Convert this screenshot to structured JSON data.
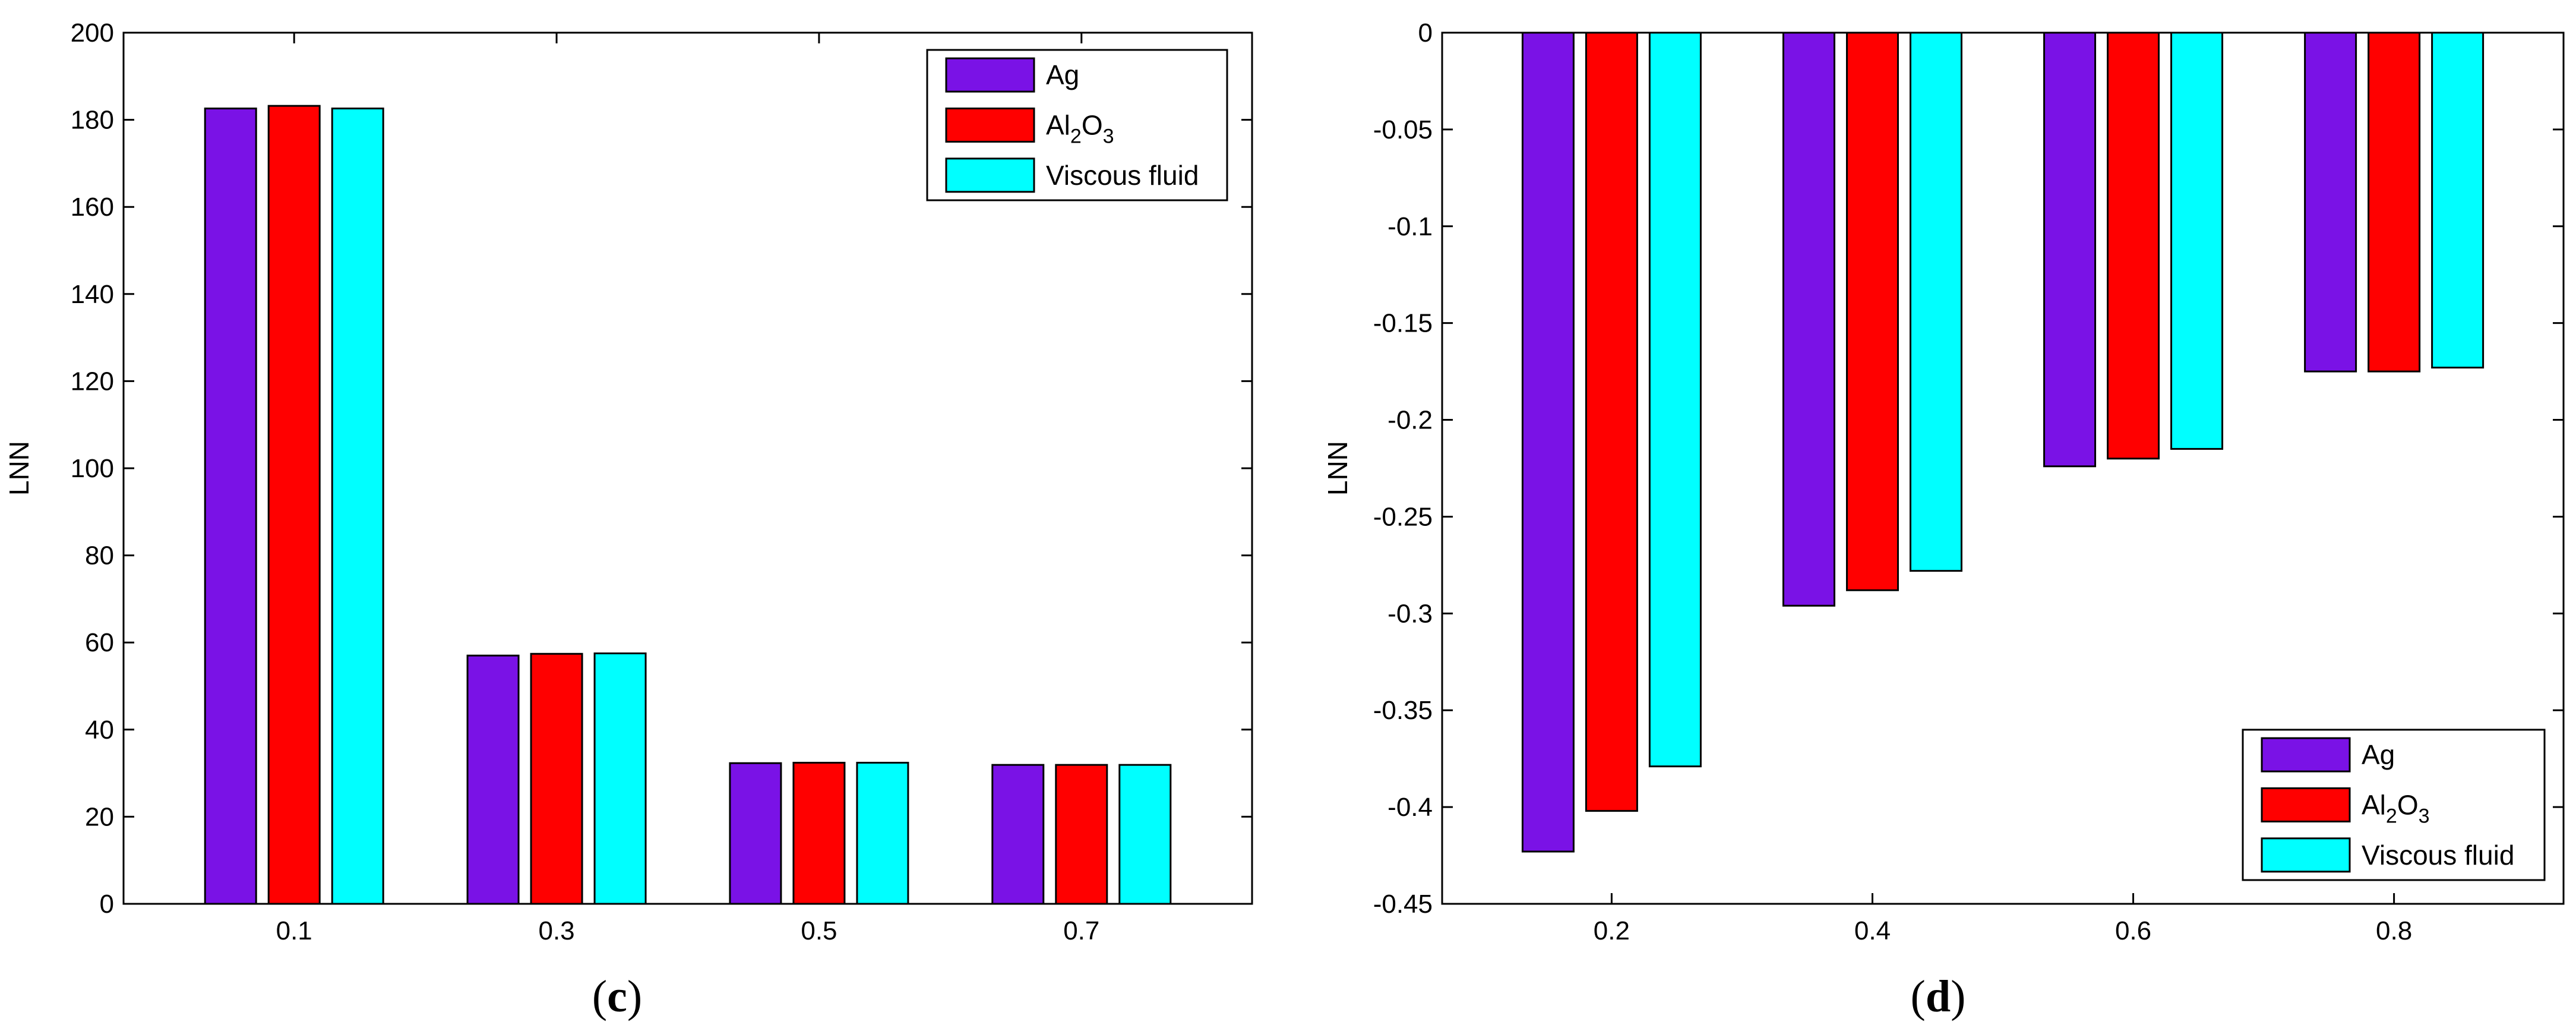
{
  "colors": {
    "series": [
      "#7a12e6",
      "#ff0000",
      "#00ffff"
    ]
  },
  "chart_data": [
    {
      "type": "bar",
      "panel_label": {
        "open": "(",
        "letter": "c",
        "close": ")"
      },
      "ylabel": "LNN",
      "xlabel": "",
      "categories": [
        "0.1",
        "0.3",
        "0.5",
        "0.7"
      ],
      "ylim": [
        0,
        200
      ],
      "yticks": [
        "0",
        "20",
        "40",
        "60",
        "80",
        "100",
        "120",
        "140",
        "160",
        "180",
        "200"
      ],
      "legend_position": "top-right",
      "series": [
        {
          "name": "Ag",
          "label_parts": [
            "Ag"
          ],
          "values": [
            182.6,
            57.0,
            32.3,
            31.9
          ]
        },
        {
          "name": "Al2O3",
          "label_parts": [
            "Al",
            "2",
            "O",
            "3"
          ],
          "values": [
            183.2,
            57.4,
            32.4,
            31.9
          ]
        },
        {
          "name": "Viscous fluid",
          "label_parts": [
            "Viscous fluid"
          ],
          "values": [
            182.6,
            57.5,
            32.4,
            31.9
          ]
        }
      ]
    },
    {
      "type": "bar",
      "panel_label": {
        "open": "(",
        "letter": "d",
        "close": ")"
      },
      "ylabel": "LNN",
      "xlabel": "",
      "categories": [
        "0.2",
        "0.4",
        "0.6",
        "0.8"
      ],
      "ylim": [
        -0.45,
        0
      ],
      "yticks": [
        "-0.45",
        "-0.4",
        "-0.35",
        "-0.3",
        "-0.25",
        "-0.2",
        "-0.15",
        "-0.1",
        "-0.05",
        "0"
      ],
      "legend_position": "bottom-right",
      "series": [
        {
          "name": "Ag",
          "label_parts": [
            "Ag"
          ],
          "values": [
            -0.423,
            -0.296,
            -0.224,
            -0.175
          ]
        },
        {
          "name": "Al2O3",
          "label_parts": [
            "Al",
            "2",
            "O",
            "3"
          ],
          "values": [
            -0.402,
            -0.288,
            -0.22,
            -0.175
          ]
        },
        {
          "name": "Viscous fluid",
          "label_parts": [
            "Viscous fluid"
          ],
          "values": [
            -0.379,
            -0.278,
            -0.215,
            -0.173
          ]
        }
      ]
    }
  ]
}
